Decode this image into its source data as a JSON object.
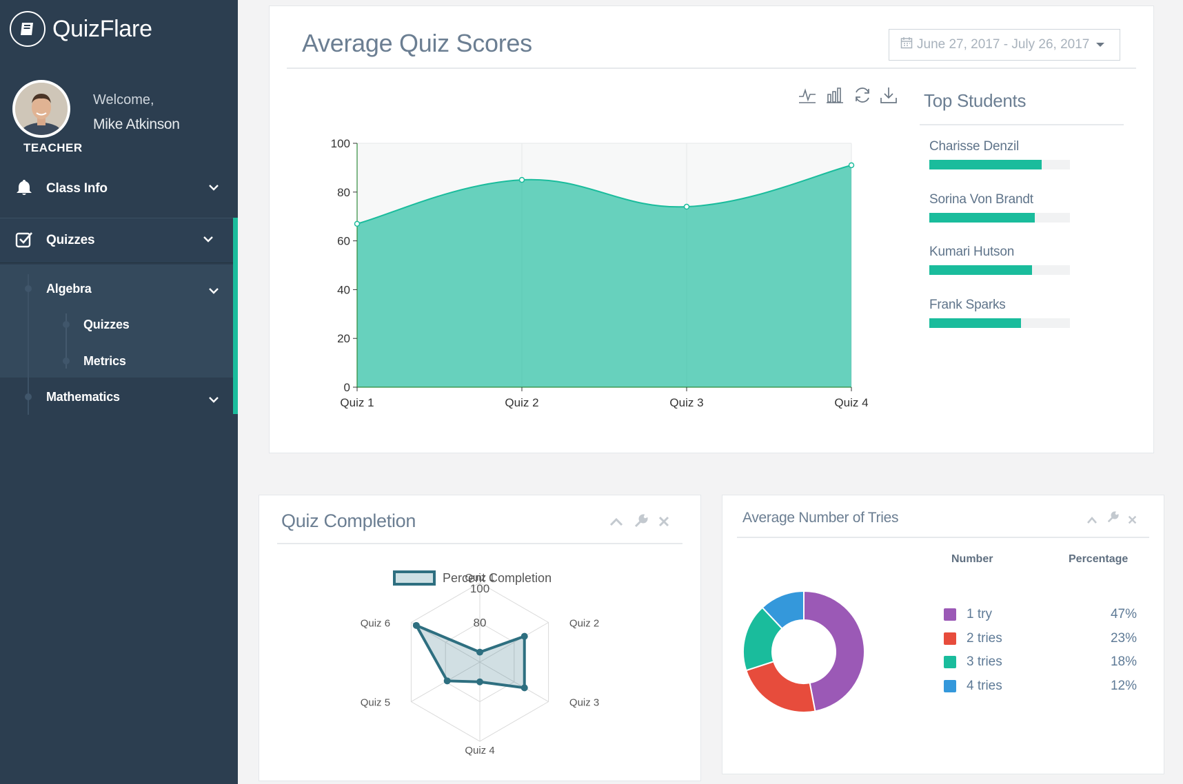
{
  "app": {
    "name": "QuizFlare"
  },
  "user": {
    "welcome": "Welcome,",
    "name": "Mike Atkinson",
    "role": "TEACHER"
  },
  "sidebar": {
    "items": [
      {
        "label": "Class Info",
        "icon": "bell-icon"
      },
      {
        "label": "Quizzes",
        "icon": "checkbox-icon"
      }
    ],
    "subjects": [
      {
        "label": "Algebra",
        "children": [
          {
            "label": "Quizzes"
          },
          {
            "label": "Metrics"
          }
        ]
      },
      {
        "label": "Mathematics"
      }
    ]
  },
  "scores_panel": {
    "title": "Average Quiz Scores",
    "date_range": "June 27, 2017 - July 26, 2017",
    "toolbox": [
      "line-chart-icon",
      "bar-chart-icon",
      "refresh-icon",
      "download-icon"
    ]
  },
  "top_students": {
    "title": "Top Students",
    "items": [
      {
        "name": "Charisse Denzil",
        "score": 0.8
      },
      {
        "name": "Sorina Von Brandt",
        "score": 0.75
      },
      {
        "name": "Kumari Hutson",
        "score": 0.73
      },
      {
        "name": "Frank Sparks",
        "score": 0.65
      }
    ]
  },
  "completion_panel": {
    "title": "Quiz Completion"
  },
  "tries_panel": {
    "title": "Average Number of Tries",
    "col_number": "Number",
    "col_percentage": "Percentage",
    "rows": [
      {
        "label": "1 try",
        "pct": "47%",
        "color": "#9b59b6"
      },
      {
        "label": "2 tries",
        "pct": "23%",
        "color": "#e74c3c"
      },
      {
        "label": "3 tries",
        "pct": "18%",
        "color": "#1abc9c"
      },
      {
        "label": "4 tries",
        "pct": "12%",
        "color": "#3498db"
      }
    ]
  },
  "chart_data": [
    {
      "type": "area",
      "categories": [
        "Quiz 1",
        "Quiz 2",
        "Quiz 3",
        "Quiz 4"
      ],
      "values": [
        67,
        85,
        74,
        91
      ],
      "ylim": [
        0,
        100
      ],
      "yticks": [
        0,
        20,
        40,
        60,
        80,
        100
      ],
      "color": "#1abc9c"
    },
    {
      "type": "radar",
      "legend": "Percent Completion",
      "axes": [
        "Quiz 1",
        "Quiz 2",
        "Quiz 3",
        "Quiz 4",
        "Quiz 5",
        "Quiz 6"
      ],
      "values": [
        65,
        86,
        86,
        70,
        79,
        97
      ],
      "range": [
        60,
        100
      ],
      "tick_labels": [
        "80",
        "100"
      ],
      "color": "#2e6f80"
    },
    {
      "type": "pie",
      "labels": [
        "1 try",
        "2 tries",
        "3 tries",
        "4 tries"
      ],
      "values": [
        47,
        23,
        18,
        12
      ],
      "colors": [
        "#9b59b6",
        "#e74c3c",
        "#1abc9c",
        "#3498db"
      ]
    }
  ]
}
